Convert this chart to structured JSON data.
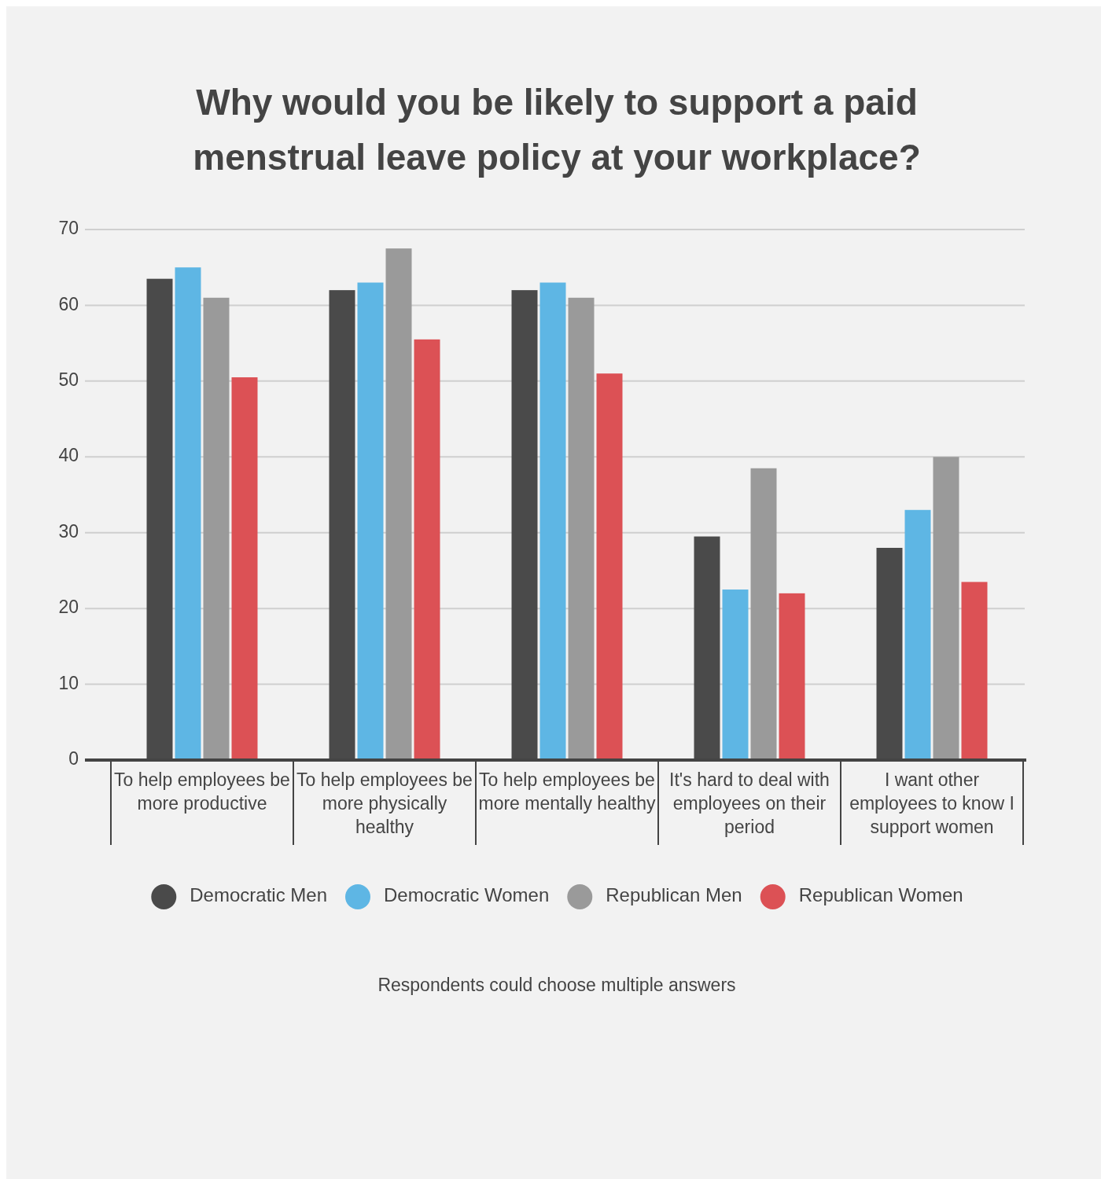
{
  "chart_data": {
    "type": "bar",
    "title": "Why would you be likely to support a paid menstrual leave policy at your workplace?",
    "categories": [
      "To help employees be more productive",
      "To help employees be more physically healthy",
      "To help employees be more mentally healthy",
      "It's hard to deal with employees on their period",
      "I want other employees to know I support women"
    ],
    "series": [
      {
        "name": "Democratic Men",
        "color": "#4a4a4a",
        "values": [
          63.5,
          62,
          62,
          29.5,
          28
        ]
      },
      {
        "name": "Democratic Women",
        "color": "#5eb6e4",
        "values": [
          65,
          63,
          63,
          22.5,
          33
        ]
      },
      {
        "name": "Republican Men",
        "color": "#9a9a9a",
        "values": [
          61,
          67.5,
          61,
          38.5,
          40
        ]
      },
      {
        "name": "Republican Women",
        "color": "#dc5155",
        "values": [
          50.5,
          55.5,
          51,
          22,
          23.5
        ]
      }
    ],
    "ylim": [
      0,
      70
    ],
    "yticks": [
      0,
      10,
      20,
      30,
      40,
      50,
      60,
      70
    ],
    "grid": "y",
    "legend": "bottom",
    "annotations": [
      "Respondents could choose multiple answers"
    ]
  }
}
